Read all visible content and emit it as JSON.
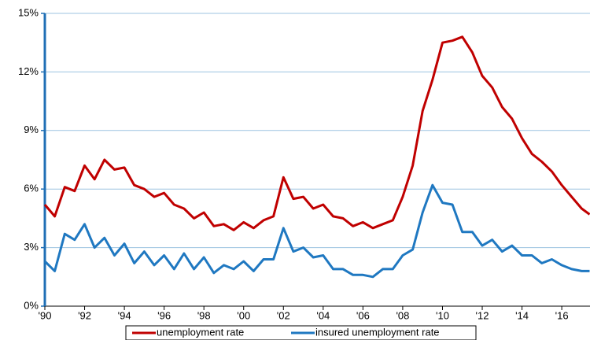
{
  "chart_data": {
    "type": "line",
    "x": [
      1990,
      1990.5,
      1991,
      1991.5,
      1992,
      1992.5,
      1993,
      1993.5,
      1994,
      1994.5,
      1995,
      1995.5,
      1996,
      1996.5,
      1997,
      1997.5,
      1998,
      1998.5,
      1999,
      1999.5,
      2000,
      2000.5,
      2001,
      2001.5,
      2002,
      2002.5,
      2003,
      2003.5,
      2004,
      2004.5,
      2005,
      2005.5,
      2006,
      2006.5,
      2007,
      2007.5,
      2008,
      2008.5,
      2009,
      2009.5,
      2010,
      2010.5,
      2011,
      2011.5,
      2012,
      2012.5,
      2013,
      2013.5,
      2014,
      2014.5,
      2015,
      2015.5,
      2016,
      2016.5,
      2017,
      2017.4
    ],
    "series": [
      {
        "name": "unemployment rate",
        "color": "#c00000",
        "values": [
          5.2,
          4.6,
          6.1,
          5.9,
          7.2,
          6.5,
          7.5,
          7.0,
          7.1,
          6.2,
          6.0,
          5.6,
          5.8,
          5.2,
          5.0,
          4.5,
          4.8,
          4.1,
          4.2,
          3.9,
          4.3,
          4.0,
          4.4,
          4.6,
          6.6,
          5.5,
          5.6,
          5.0,
          5.2,
          4.6,
          4.5,
          4.1,
          4.3,
          4.0,
          4.2,
          4.4,
          5.6,
          7.2,
          10.0,
          11.6,
          13.5,
          13.6,
          13.8,
          13.0,
          11.8,
          11.2,
          10.2,
          9.6,
          8.6,
          7.8,
          7.4,
          6.9,
          6.2,
          5.6,
          5.0,
          4.7
        ]
      },
      {
        "name": "insured unemployment rate",
        "color": "#1f78c1",
        "values": [
          2.3,
          1.8,
          3.7,
          3.4,
          4.2,
          3.0,
          3.5,
          2.6,
          3.2,
          2.2,
          2.8,
          2.1,
          2.6,
          1.9,
          2.7,
          1.9,
          2.5,
          1.7,
          2.1,
          1.9,
          2.3,
          1.8,
          2.4,
          2.4,
          4.0,
          2.8,
          3.0,
          2.5,
          2.6,
          1.9,
          1.9,
          1.6,
          1.6,
          1.5,
          1.9,
          1.9,
          2.6,
          2.9,
          4.8,
          6.2,
          5.3,
          5.2,
          3.8,
          3.8,
          3.1,
          3.4,
          2.8,
          3.1,
          2.6,
          2.6,
          2.2,
          2.4,
          2.1,
          1.9,
          1.8,
          1.8
        ]
      }
    ],
    "xlim": [
      1990,
      2017.42
    ],
    "xticks": [
      {
        "value": 1990,
        "label": "'90"
      },
      {
        "value": 1992,
        "label": "'92"
      },
      {
        "value": 1994,
        "label": "'94"
      },
      {
        "value": 1996,
        "label": "'96"
      },
      {
        "value": 1998,
        "label": "'98"
      },
      {
        "value": 2000,
        "label": "'00"
      },
      {
        "value": 2002,
        "label": "'02"
      },
      {
        "value": 2004,
        "label": "'04"
      },
      {
        "value": 2006,
        "label": "'06"
      },
      {
        "value": 2008,
        "label": "'08"
      },
      {
        "value": 2010,
        "label": "'10"
      },
      {
        "value": 2012,
        "label": "'12"
      },
      {
        "value": 2014,
        "label": "'14"
      },
      {
        "value": 2016,
        "label": "'16"
      }
    ],
    "ylim": [
      0,
      15
    ],
    "yticks": [
      {
        "value": 0,
        "label": "0%"
      },
      {
        "value": 3,
        "label": "3%"
      },
      {
        "value": 6,
        "label": "6%"
      },
      {
        "value": 9,
        "label": "9%"
      },
      {
        "value": 12,
        "label": "12%"
      },
      {
        "value": 15,
        "label": "15%"
      }
    ],
    "grid": true
  }
}
